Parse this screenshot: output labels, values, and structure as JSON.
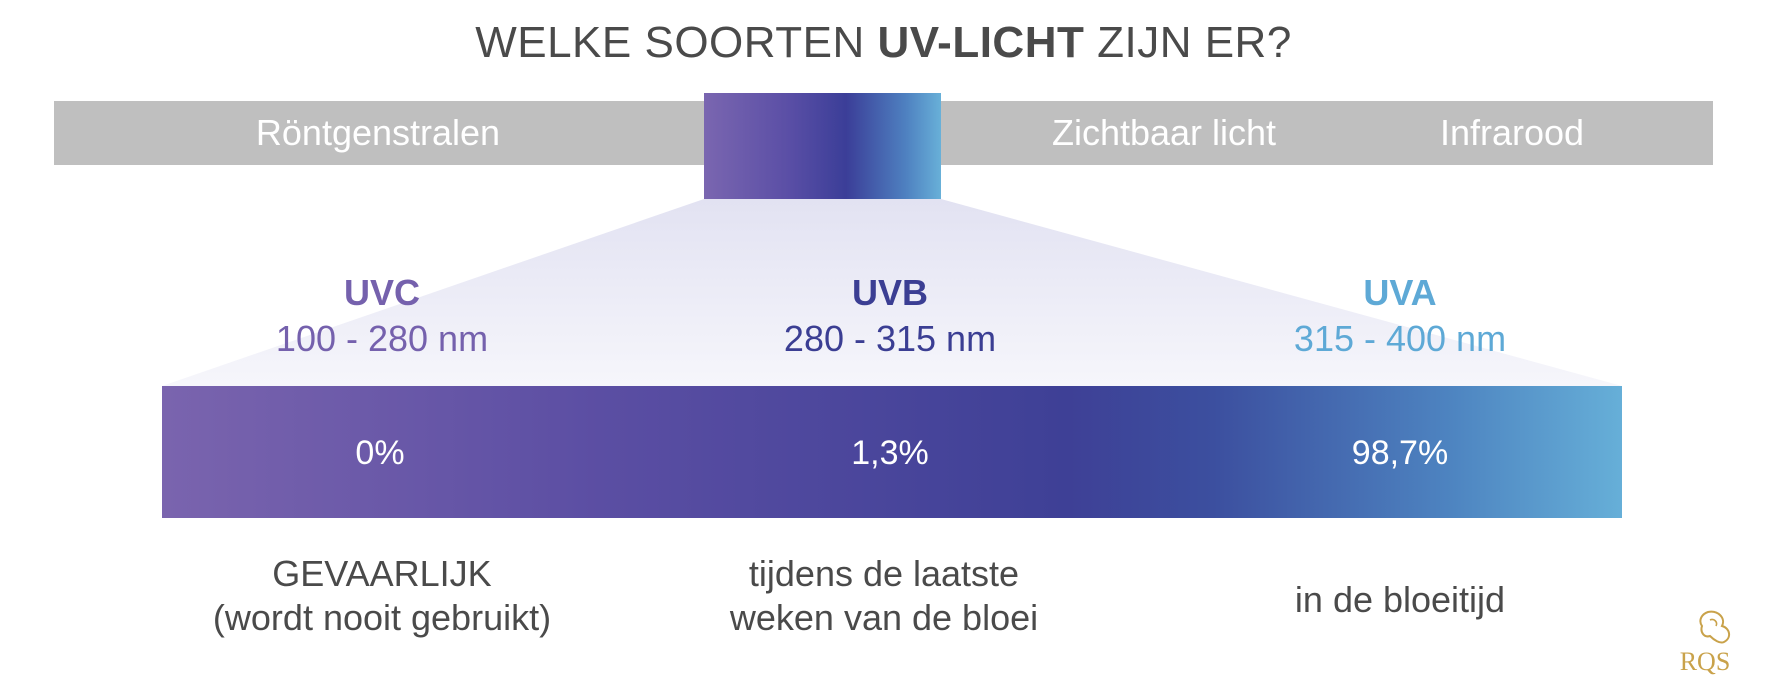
{
  "title": {
    "prefix": "WELKE SOORTEN ",
    "bold": "UV-LICHT",
    "suffix": " ZIJN ER?"
  },
  "spectrum": {
    "labels": [
      "Röntgenstralen",
      "Zichtbaar licht",
      "Infrarood"
    ]
  },
  "uv_types": [
    {
      "name": "UVC",
      "range": "100 - 280 nm",
      "share": "0%",
      "use_lines": [
        "GEVAARLIJK",
        "(wordt nooit gebruikt)"
      ],
      "color": "#7561ad"
    },
    {
      "name": "UVB",
      "range": "280 - 315 nm",
      "share": "1,3%",
      "use_lines": [
        "tijdens de laatste",
        "weken van de bloei"
      ],
      "color": "#3b3e93"
    },
    {
      "name": "UVA",
      "range": "315 - 400 nm",
      "share": "98,7%",
      "use_lines": [
        "in de bloeitijd"
      ],
      "color": "#5ea9d6"
    }
  ],
  "logo": {
    "text": "RQS",
    "icon": "lion-logo-icon"
  }
}
